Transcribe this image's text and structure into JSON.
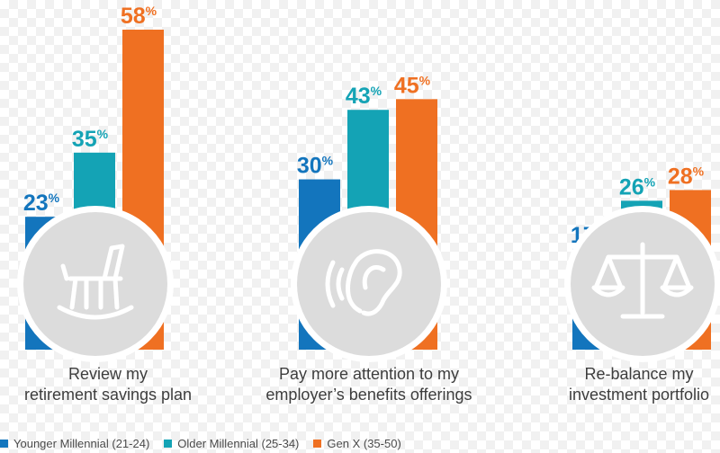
{
  "chart_data": {
    "type": "bar",
    "categories": [
      "Review my retirement savings plan",
      "Pay more attention to my employer’s benefits offerings",
      "Re-balance my investment portfolio"
    ],
    "category_lines": [
      [
        "Review my",
        "retirement savings plan"
      ],
      [
        "Pay more attention to my",
        "employer’s benefits offerings"
      ],
      [
        "Re-balance my",
        "investment portfolio"
      ]
    ],
    "series": [
      {
        "name": "Younger Millennial (21-24)",
        "values": [
          23,
          30,
          17
        ],
        "color": "#1375bd"
      },
      {
        "name": "Older Millennial (25-34)",
        "values": [
          35,
          43,
          26
        ],
        "color": "#14a3b5"
      },
      {
        "name": "Gen X (35-50)",
        "values": [
          58,
          45,
          28
        ],
        "color": "#ef7022"
      }
    ],
    "value_suffix": "%",
    "ylim": [
      0,
      58
    ],
    "icons": [
      "rocking-chair-icon",
      "ear-icon",
      "scale-icon"
    ],
    "legend_position": "bottom-left",
    "circle_color": "#dcdcdc"
  }
}
